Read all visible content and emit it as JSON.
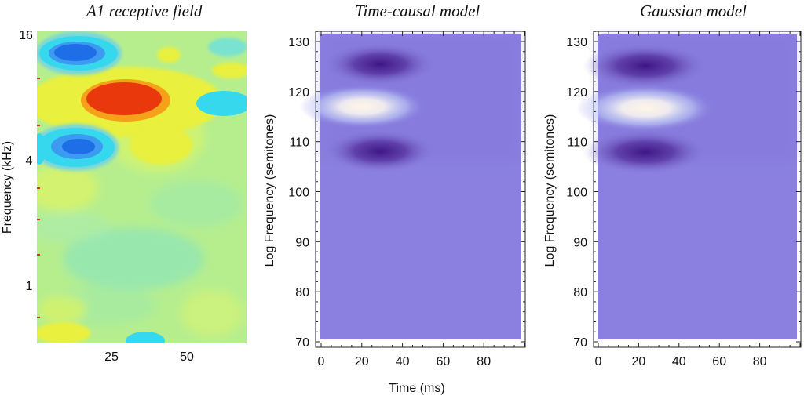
{
  "chart_data": [
    {
      "type": "heatmap",
      "title": "A1 receptive field",
      "ylabel": "Frequency (kHz)",
      "xlabel": "",
      "yticks": [
        "16",
        "4",
        "1"
      ],
      "xticks": [
        "25",
        "50"
      ],
      "blobs": [
        {
          "sign": "negative",
          "t": 14,
          "octave": 3.7
        },
        {
          "sign": "positive",
          "t": 30,
          "octave": 3.0
        },
        {
          "sign": "negative",
          "t": 14,
          "octave": 2.0
        }
      ]
    },
    {
      "type": "heatmap",
      "title": "Time-causal model",
      "xlabel": "Time (ms)",
      "ylabel": "Log Frequency (semitones)",
      "xlim": [
        0,
        100
      ],
      "ylim": [
        70,
        132
      ],
      "xticks": [
        0,
        20,
        40,
        60,
        80
      ],
      "yticks": [
        70,
        80,
        90,
        100,
        110,
        120,
        130
      ],
      "blobs": [
        {
          "sign": "negative",
          "t": 25,
          "f": 124.5
        },
        {
          "sign": "positive",
          "t": 25,
          "f": 116
        },
        {
          "sign": "negative",
          "t": 25,
          "f": 107
        }
      ]
    },
    {
      "type": "heatmap",
      "title": "Gaussian model",
      "xlabel": "",
      "ylabel": "Log Frequency (semitones)",
      "xlim": [
        0,
        100
      ],
      "ylim": [
        70,
        132
      ],
      "xticks": [
        0,
        20,
        40,
        60,
        80
      ],
      "yticks": [
        70,
        80,
        90,
        100,
        110,
        120,
        130
      ],
      "blobs": [
        {
          "sign": "negative",
          "t": 25,
          "f": 124.5
        },
        {
          "sign": "positive",
          "t": 25,
          "f": 116
        },
        {
          "sign": "negative",
          "t": 25,
          "f": 107
        }
      ]
    }
  ],
  "colors": {
    "model_background": "#8b80e0",
    "model_negative": "#3a1080",
    "model_positive": "#fff3e3",
    "rf_background": "#b8ef8a",
    "rf_red": "#e8380c",
    "rf_blue": "#1e6ee8",
    "rf_cyan": "#36d8ee",
    "rf_yellow": "#f0f23a"
  }
}
